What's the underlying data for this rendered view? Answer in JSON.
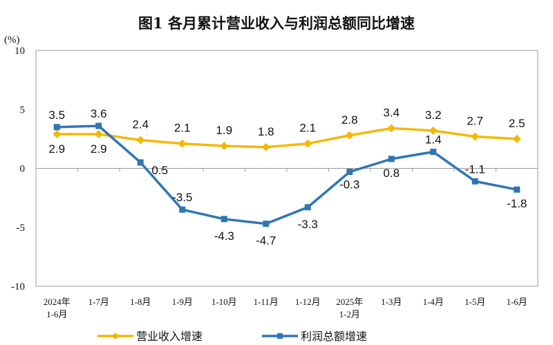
{
  "chart_data": {
    "type": "line",
    "title": "图1  各月累计营业收入与利润总额同比增速",
    "ylabel": "(%)",
    "ylim": [
      -10,
      10
    ],
    "yticks": [
      10,
      5,
      0,
      -5,
      -10
    ],
    "grid": false,
    "legend_placement": "bottom",
    "categories": [
      [
        "2024年",
        "1-6月"
      ],
      [
        "1-7月"
      ],
      [
        "1-8月"
      ],
      [
        "1-9月"
      ],
      [
        "1-10月"
      ],
      [
        "1-11月"
      ],
      [
        "1-12月"
      ],
      [
        "2025年",
        "1-2月"
      ],
      [
        "1-3月"
      ],
      [
        "1-4月"
      ],
      [
        "1-5月"
      ],
      [
        "1-6月"
      ]
    ],
    "series": [
      {
        "name": "营业收入增速",
        "color": "#F5B800",
        "marker": "diamond",
        "values": [
          2.9,
          2.9,
          2.4,
          2.1,
          1.9,
          1.8,
          2.1,
          2.8,
          3.4,
          3.2,
          2.7,
          2.5
        ]
      },
      {
        "name": "利润总额增速",
        "color": "#2E75B6",
        "marker": "square",
        "values": [
          3.5,
          3.6,
          0.5,
          -3.5,
          -4.3,
          -4.7,
          -3.3,
          -0.3,
          0.8,
          1.4,
          -1.1,
          -1.8
        ]
      }
    ]
  }
}
